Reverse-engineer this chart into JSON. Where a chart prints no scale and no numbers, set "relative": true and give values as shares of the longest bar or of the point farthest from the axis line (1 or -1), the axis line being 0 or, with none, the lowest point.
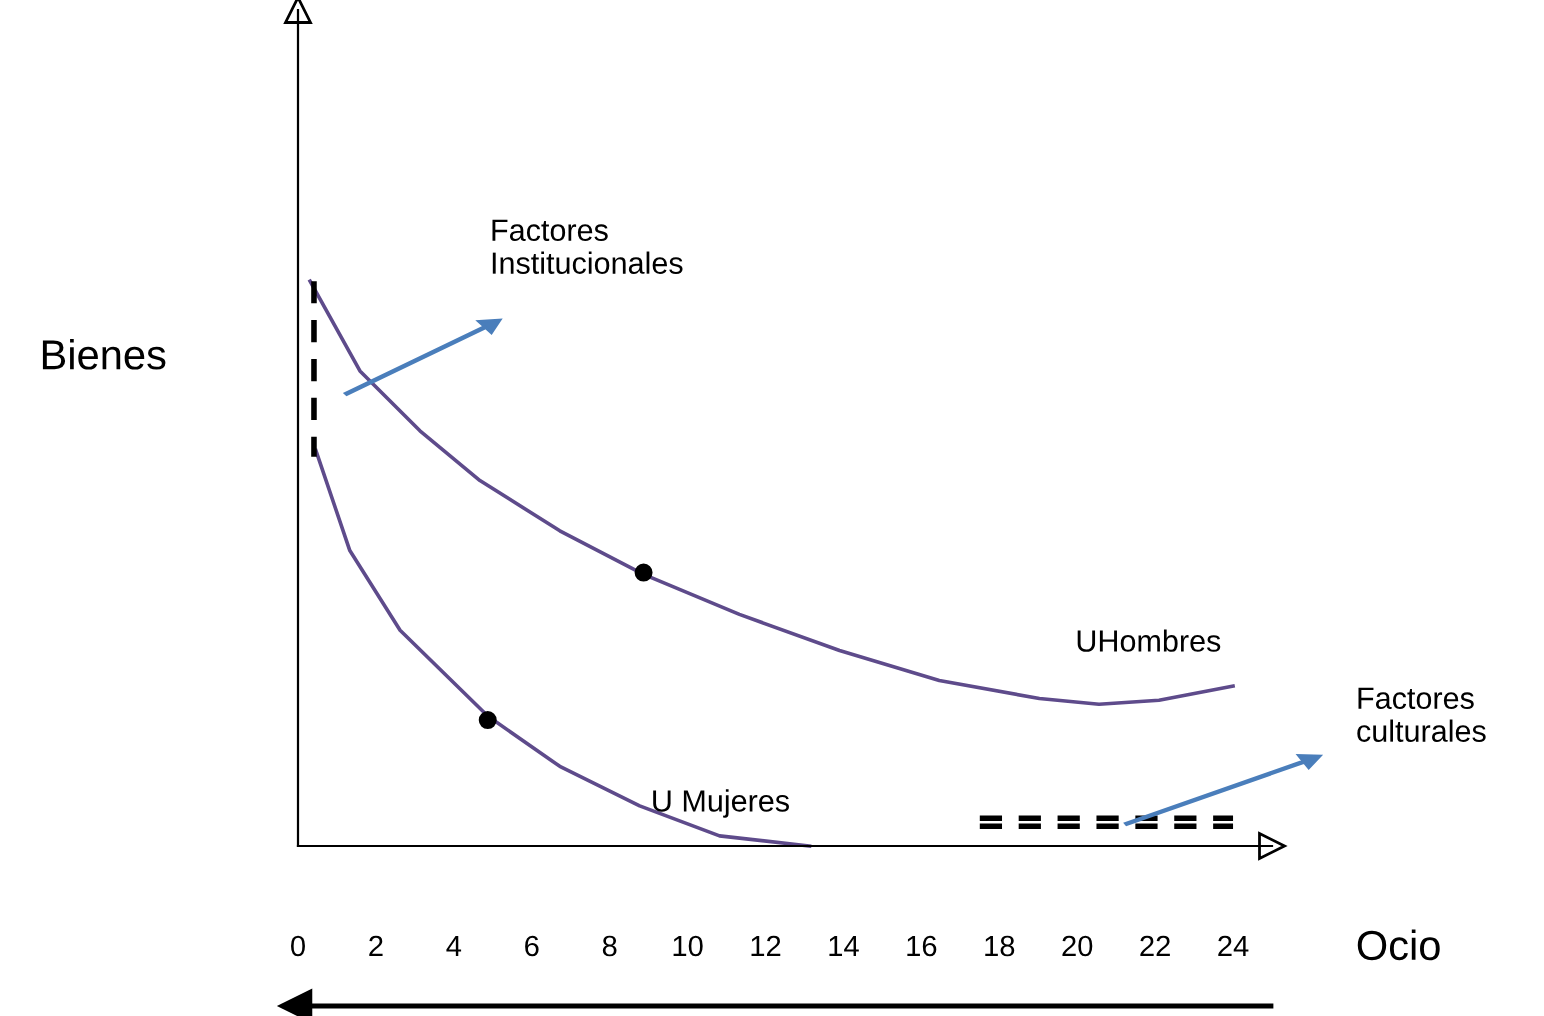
{
  "chart_data": {
    "type": "line",
    "relative": true,
    "xlabel": "Ocio",
    "ylabel": "Bienes",
    "xlim": [
      0,
      25
    ],
    "xticks": [
      0,
      2,
      4,
      6,
      8,
      10,
      12,
      14,
      16,
      18,
      20,
      22,
      24
    ],
    "grid": false,
    "legend": false,
    "marker": "none",
    "series": [
      {
        "name": "UHombres",
        "color": "#5e4b8b",
        "line_style": "solid",
        "x": [
          0.31,
          1.59,
          3.13,
          4.67,
          6.72,
          8.87,
          11.33,
          13.9,
          16.46,
          19.03,
          20.56,
          22.1,
          24
        ],
        "values": [
          1,
          0.841,
          0.735,
          0.647,
          0.558,
          0.481,
          0.41,
          0.346,
          0.293,
          0.261,
          0.251,
          0.258,
          0.283
        ]
      },
      {
        "name": "U Mujeres",
        "color": "#5e4b8b",
        "line_style": "solid",
        "x": [
          0.46,
          1.33,
          2.62,
          4.87,
          6.72,
          8.77,
          10.82,
          13.13
        ],
        "values": [
          0.7,
          0.523,
          0.382,
          0.23,
          0.141,
          0.071,
          0.018,
          0
        ]
      },
      {
        "type": "scatter",
        "color": "#000000",
        "marker": "circle",
        "x": [
          4.87,
          8.87
        ],
        "values": [
          0.223,
          0.484
        ]
      },
      {
        "type": "line",
        "color": "#000000",
        "line_style": "dashed",
        "x": [
          0.41,
          0.41
        ],
        "values": [
          1,
          0.689
        ]
      },
      {
        "type": "line",
        "color": "#000000",
        "line_style": "dashed",
        "x": [
          17.5,
          24
        ],
        "values": [
          0.049,
          0.049
        ]
      },
      {
        "type": "line",
        "color": "#000000",
        "line_style": "dashed",
        "x": [
          17.5,
          24
        ],
        "values": [
          0.035,
          0.035
        ]
      }
    ],
    "annotations": [
      "Factores\nInstitucionales",
      "Factores\nculturales"
    ]
  }
}
